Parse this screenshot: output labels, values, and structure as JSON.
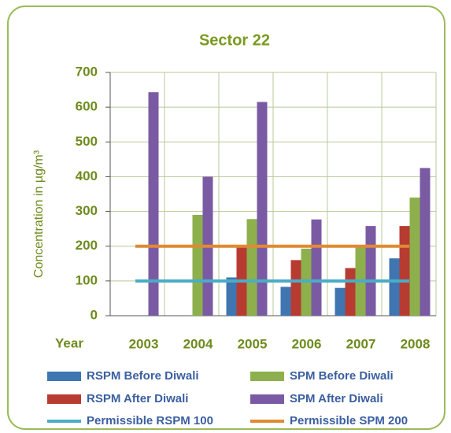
{
  "chart_data": {
    "type": "bar",
    "title": "Sector 22",
    "y_label": "Concentration in µg/m³",
    "x_label": "Year",
    "categories": [
      "2003",
      "2004",
      "2005",
      "2006",
      "2007",
      "2008"
    ],
    "series": [
      {
        "name": "RSPM Before Diwali",
        "color": "#3f75b0",
        "values": [
          null,
          null,
          110,
          83,
          80,
          165
        ]
      },
      {
        "name": "RSPM After Diwali",
        "color": "#b83b32",
        "values": [
          null,
          null,
          200,
          160,
          137,
          258
        ]
      },
      {
        "name": "SPM Before Diwali",
        "color": "#8db04d",
        "values": [
          null,
          290,
          278,
          193,
          200,
          340
        ]
      },
      {
        "name": "SPM After Diwali",
        "color": "#7a5ba3",
        "values": [
          643,
          400,
          615,
          277,
          258,
          425
        ]
      }
    ],
    "reference_lines": [
      {
        "name": "Permissible RSPM 100",
        "color": "#4bacc6",
        "value": 100
      },
      {
        "name": "Permissible SPM 200",
        "color": "#e08a33",
        "value": 200
      }
    ],
    "ylim": [
      0,
      700
    ],
    "yticks": [
      0,
      100,
      200,
      300,
      400,
      500,
      600,
      700
    ],
    "grid": true
  }
}
